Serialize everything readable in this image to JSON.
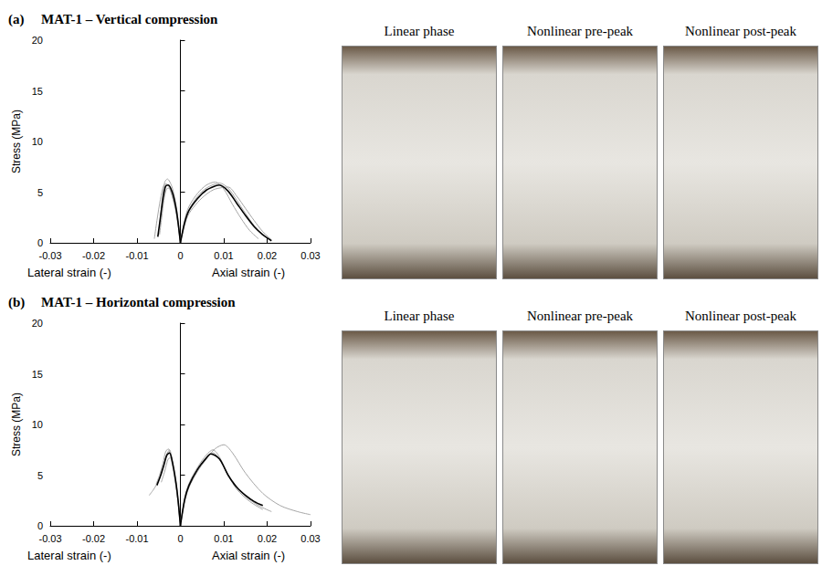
{
  "panels": [
    {
      "letter": "(a)",
      "photo_captions": [
        "Linear phase",
        "Nonlinear pre-peak",
        "Nonlinear post-peak"
      ]
    },
    {
      "letter": "(b)",
      "photo_captions": [
        "Linear phase",
        "Nonlinear pre-peak",
        "Nonlinear post-peak"
      ]
    }
  ],
  "chart_data": [
    {
      "type": "line",
      "title": "MAT-1 – Vertical compression",
      "ylabel": "Stress (MPa)",
      "xlabel_left": "Lateral strain (-)",
      "xlabel_right": "Axial strain (-)",
      "xlim": [
        -0.03,
        0.03
      ],
      "xticks": [
        -0.03,
        -0.02,
        -0.01,
        0,
        0.01,
        0.02,
        0.03
      ],
      "ylim": [
        0,
        20
      ],
      "yticks": [
        0,
        5,
        10,
        15,
        20
      ],
      "grid": false,
      "series": [
        {
          "color": "#a6a6a6",
          "x": [
            0,
            -0.0006,
            -0.0012,
            -0.002,
            -0.003,
            -0.0036,
            -0.0042,
            -0.0048
          ],
          "values": [
            0,
            2.5,
            4.2,
            5.6,
            6.3,
            6.0,
            4.2,
            1.5
          ]
        },
        {
          "color": "#a6a6a6",
          "x": [
            0,
            0.001,
            0.002,
            0.004,
            0.006,
            0.008,
            0.01,
            0.012,
            0.014,
            0.016,
            0.018
          ],
          "values": [
            0,
            2.3,
            3.6,
            4.9,
            5.7,
            6.0,
            5.3,
            3.8,
            2.4,
            1.2,
            0.4
          ]
        },
        {
          "color": "#a6a6a6",
          "x": [
            0,
            -0.0005,
            -0.001,
            -0.0018,
            -0.0026,
            -0.0032,
            -0.0038,
            -0.0043,
            -0.0048
          ],
          "values": [
            0,
            1.8,
            3.2,
            4.6,
            5.4,
            5.3,
            4.2,
            2.5,
            0.8
          ]
        },
        {
          "color": "#a6a6a6",
          "x": [
            0,
            0.001,
            0.002,
            0.004,
            0.006,
            0.008,
            0.011,
            0.013,
            0.015,
            0.017,
            0.019,
            0.021
          ],
          "values": [
            0,
            1.8,
            2.9,
            4.0,
            4.8,
            5.3,
            5.5,
            4.6,
            3.4,
            2.2,
            1.1,
            0.3
          ]
        },
        {
          "color": "#a6a6a6",
          "x": [
            0,
            -0.0006,
            -0.0013,
            -0.0022,
            -0.0031,
            -0.0038,
            -0.0046,
            -0.0054,
            -0.006
          ],
          "values": [
            0,
            2.0,
            3.6,
            5.0,
            5.8,
            5.7,
            4.3,
            2.2,
            0.4
          ]
        },
        {
          "color": "#a6a6a6",
          "x": [
            0,
            0.001,
            0.002,
            0.004,
            0.006,
            0.009,
            0.011,
            0.013,
            0.015,
            0.017,
            0.019
          ],
          "values": [
            0,
            2.1,
            3.3,
            4.6,
            5.4,
            5.9,
            5.4,
            4.2,
            2.9,
            1.7,
            0.7
          ]
        },
        {
          "color": "#000000",
          "x": [
            0,
            -0.0005,
            -0.001,
            -0.0018,
            -0.0028,
            -0.0034,
            -0.004,
            -0.0046,
            -0.0052
          ],
          "values": [
            0,
            1.9,
            3.4,
            4.9,
            5.7,
            5.6,
            4.4,
            2.5,
            0.6
          ]
        },
        {
          "color": "#000000",
          "x": [
            0,
            0.001,
            0.002,
            0.004,
            0.006,
            0.008,
            0.009,
            0.011,
            0.013,
            0.015,
            0.017,
            0.019,
            0.021
          ],
          "values": [
            0,
            2.0,
            3.2,
            4.4,
            5.2,
            5.6,
            5.7,
            5.1,
            3.9,
            2.7,
            1.6,
            0.8,
            0.2
          ]
        }
      ]
    },
    {
      "type": "line",
      "title": "MAT-1 – Horizontal compression",
      "ylabel": "Stress (MPa)",
      "xlabel_left": "Lateral strain (-)",
      "xlabel_right": "Axial strain (-)",
      "xlim": [
        -0.03,
        0.03
      ],
      "xticks": [
        -0.03,
        -0.02,
        -0.01,
        0,
        0.01,
        0.02,
        0.03
      ],
      "ylim": [
        0,
        20
      ],
      "yticks": [
        0,
        5,
        10,
        15,
        20
      ],
      "grid": false,
      "series": [
        {
          "color": "#a6a6a6",
          "x": [
            0,
            -0.0005,
            -0.001,
            -0.0018,
            -0.0025,
            -0.0032,
            -0.004,
            -0.005,
            -0.006,
            -0.0072
          ],
          "values": [
            0,
            2.5,
            4.3,
            6.2,
            7.5,
            7.0,
            5.8,
            4.5,
            3.7,
            3.0
          ]
        },
        {
          "color": "#a6a6a6",
          "x": [
            0,
            0.001,
            0.002,
            0.004,
            0.006,
            0.0075,
            0.009,
            0.011,
            0.013,
            0.015,
            0.018,
            0.021
          ],
          "values": [
            0,
            2.8,
            4.2,
            5.8,
            7.0,
            7.5,
            6.8,
            5.0,
            3.8,
            2.9,
            2.0,
            1.4
          ]
        },
        {
          "color": "#a6a6a6",
          "x": [
            0,
            -0.0006,
            -0.0012,
            -0.002,
            -0.0028,
            -0.0034,
            -0.004,
            -0.0048,
            -0.0056
          ],
          "values": [
            0,
            2.6,
            4.4,
            6.3,
            7.6,
            7.3,
            6.2,
            5.0,
            4.1
          ]
        },
        {
          "color": "#a6a6a6",
          "x": [
            0,
            0.001,
            0.002,
            0.004,
            0.006,
            0.008,
            0.01,
            0.012,
            0.015,
            0.019,
            0.023,
            0.027,
            0.03
          ],
          "values": [
            0,
            2.4,
            3.8,
            5.4,
            6.6,
            7.6,
            8.0,
            7.2,
            5.2,
            3.2,
            2.0,
            1.4,
            1.1
          ]
        },
        {
          "color": "#a6a6a6",
          "x": [
            0,
            -0.0005,
            -0.001,
            -0.0016,
            -0.0022,
            -0.0028,
            -0.0036,
            -0.0044
          ],
          "values": [
            0,
            2.2,
            3.9,
            5.6,
            6.7,
            6.6,
            5.4,
            4.3
          ]
        },
        {
          "color": "#a6a6a6",
          "x": [
            0,
            0.001,
            0.002,
            0.004,
            0.006,
            0.0075,
            0.009,
            0.011,
            0.013,
            0.016,
            0.019
          ],
          "values": [
            0,
            2.6,
            4.0,
            5.6,
            6.7,
            7.2,
            6.6,
            5.0,
            3.6,
            2.4,
            1.6
          ]
        },
        {
          "color": "#000000",
          "x": [
            0,
            -0.0005,
            -0.001,
            -0.0017,
            -0.0025,
            -0.0031,
            -0.0038,
            -0.0046,
            -0.0054
          ],
          "values": [
            0,
            2.4,
            4.2,
            6.0,
            7.2,
            7.0,
            6.0,
            4.9,
            4.0
          ]
        },
        {
          "color": "#000000",
          "x": [
            0,
            0.001,
            0.002,
            0.004,
            0.006,
            0.007,
            0.009,
            0.011,
            0.013,
            0.015,
            0.017,
            0.019
          ],
          "values": [
            0,
            2.6,
            4.0,
            5.6,
            6.7,
            7.1,
            6.6,
            5.0,
            3.8,
            3.0,
            2.4,
            2.0
          ]
        }
      ]
    }
  ]
}
